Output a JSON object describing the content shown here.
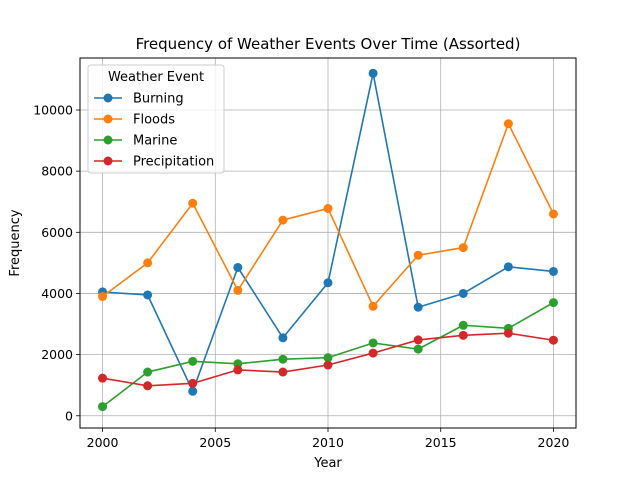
{
  "chart_data": {
    "type": "line",
    "title": "Frequency of Weather Events Over Time (Assorted)",
    "xlabel": "Year",
    "ylabel": "Frequency",
    "x": [
      2000,
      2002,
      2004,
      2006,
      2008,
      2010,
      2012,
      2014,
      2016,
      2018,
      2020
    ],
    "xlim": [
      1999,
      2021
    ],
    "ylim": [
      -400,
      11700
    ],
    "x_ticks": [
      2000,
      2005,
      2010,
      2015,
      2020
    ],
    "y_ticks": [
      0,
      2000,
      4000,
      6000,
      8000,
      10000
    ],
    "grid": true,
    "legend": {
      "title": "Weather Event",
      "placement": "upper-left"
    },
    "series": [
      {
        "name": "Burning",
        "color": "#1f77b4",
        "values": [
          4050,
          3950,
          800,
          4850,
          2550,
          4350,
          11200,
          3550,
          4000,
          4870,
          4720
        ]
      },
      {
        "name": "Floods",
        "color": "#ff7f0e",
        "values": [
          3900,
          5000,
          6950,
          4100,
          6400,
          6780,
          3580,
          5250,
          5500,
          9550,
          6600
        ]
      },
      {
        "name": "Marine",
        "color": "#2ca02c",
        "values": [
          300,
          1430,
          1780,
          1700,
          1850,
          1900,
          2380,
          2180,
          2960,
          2860,
          3700
        ]
      },
      {
        "name": "Precipitation",
        "color": "#d62728",
        "values": [
          1230,
          980,
          1060,
          1500,
          1430,
          1660,
          2050,
          2480,
          2630,
          2700,
          2470
        ]
      }
    ]
  }
}
